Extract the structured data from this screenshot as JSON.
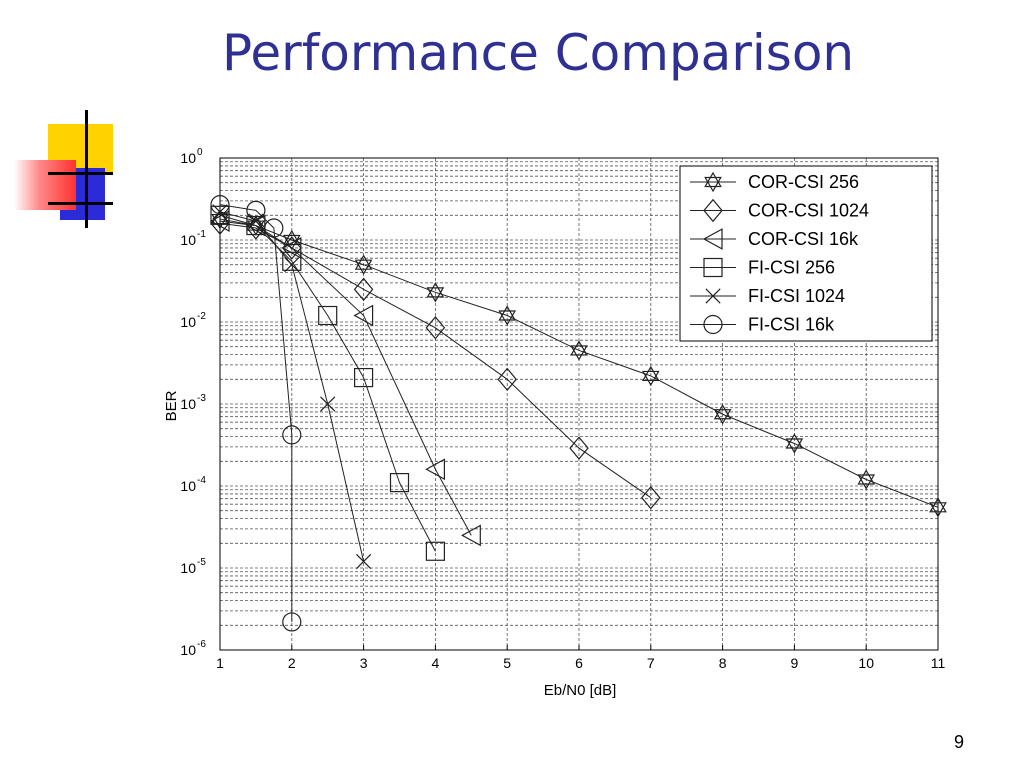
{
  "slide": {
    "title": "Performance Comparison",
    "page_number": "9",
    "title_color": "#2e3192"
  },
  "chart_data": {
    "type": "line",
    "xlabel": "Eb/N0 [dB]",
    "ylabel": "BER",
    "xlim": [
      1,
      11
    ],
    "ylim": [
      1e-06,
      1
    ],
    "yscale": "log",
    "x_ticks": [
      "1",
      "2",
      "3",
      "4",
      "5",
      "6",
      "7",
      "8",
      "9",
      "10",
      "11"
    ],
    "y_ticks": [
      {
        "base": "10",
        "exp": "0"
      },
      {
        "base": "10",
        "exp": "-1"
      },
      {
        "base": "10",
        "exp": "-2"
      },
      {
        "base": "10",
        "exp": "-3"
      },
      {
        "base": "10",
        "exp": "-4"
      },
      {
        "base": "10",
        "exp": "-5"
      },
      {
        "base": "10",
        "exp": "-6"
      }
    ],
    "grid": true,
    "legend_position": "top-right",
    "series": [
      {
        "name": "COR-CSI 256",
        "marker": "hexagram",
        "points": [
          [
            1,
            0.18
          ],
          [
            1.5,
            0.15
          ],
          [
            2,
            0.1
          ],
          [
            3,
            0.05
          ],
          [
            4,
            0.023
          ],
          [
            5,
            0.012
          ],
          [
            6,
            0.0045
          ],
          [
            7,
            0.0022
          ],
          [
            8,
            0.00075
          ],
          [
            9,
            0.00033
          ],
          [
            10,
            0.00012
          ],
          [
            11,
            5.5e-05
          ]
        ]
      },
      {
        "name": "COR-CSI 1024",
        "marker": "diamond",
        "points": [
          [
            1,
            0.16
          ],
          [
            1.5,
            0.14
          ],
          [
            2,
            0.08
          ],
          [
            3,
            0.025
          ],
          [
            4,
            0.0085
          ],
          [
            5,
            0.002
          ],
          [
            6,
            0.00029
          ],
          [
            7,
            7.2e-05
          ]
        ]
      },
      {
        "name": "COR-CSI 16k",
        "marker": "triangle-left",
        "points": [
          [
            1,
            0.17
          ],
          [
            1.5,
            0.15
          ],
          [
            2,
            0.08
          ],
          [
            3,
            0.012
          ],
          [
            4,
            0.00016
          ],
          [
            4.5,
            2.5e-05
          ]
        ]
      },
      {
        "name": "FI-CSI 256",
        "marker": "square",
        "points": [
          [
            1,
            0.2
          ],
          [
            1.5,
            0.15
          ],
          [
            2,
            0.055
          ],
          [
            2.5,
            0.012
          ],
          [
            3,
            0.0021
          ],
          [
            3.5,
            0.00011
          ],
          [
            4,
            1.6e-05
          ]
        ]
      },
      {
        "name": "FI-CSI 1024",
        "marker": "x",
        "points": [
          [
            1,
            0.22
          ],
          [
            1.5,
            0.17
          ],
          [
            2,
            0.05
          ],
          [
            2.5,
            0.001
          ],
          [
            3,
            1.2e-05
          ]
        ]
      },
      {
        "name": "FI-CSI 16k",
        "marker": "circle",
        "points": [
          [
            1,
            0.27
          ],
          [
            1.5,
            0.23
          ],
          [
            1.75,
            0.14
          ],
          [
            2,
            0.00042
          ],
          [
            2,
            2.2e-06
          ]
        ]
      }
    ]
  }
}
